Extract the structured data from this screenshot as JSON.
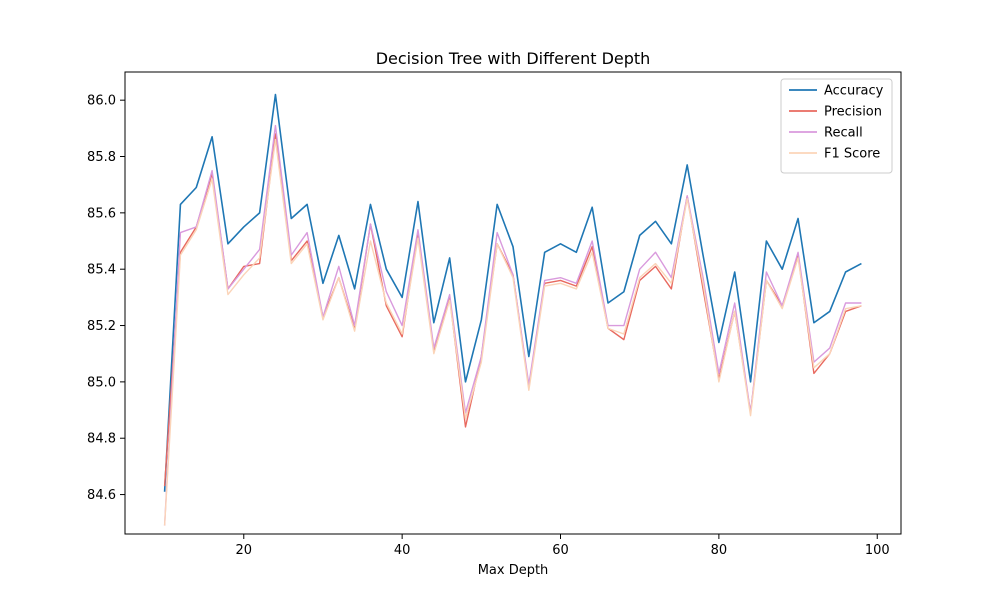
{
  "chart_data": {
    "type": "line",
    "title": "Decision Tree with Different Depth",
    "xlabel": "Max Depth",
    "ylabel": "",
    "xlim": [
      5,
      103
    ],
    "ylim": [
      84.46,
      86.1
    ],
    "xticks": [
      20,
      40,
      60,
      80,
      100
    ],
    "yticks": [
      84.6,
      84.8,
      85.0,
      85.2,
      85.4,
      85.6,
      85.8,
      86.0
    ],
    "grid": false,
    "legend_position": "top-right",
    "x": [
      10,
      12,
      14,
      16,
      18,
      20,
      22,
      24,
      26,
      28,
      30,
      32,
      34,
      36,
      38,
      40,
      42,
      44,
      46,
      48,
      50,
      52,
      54,
      56,
      58,
      60,
      62,
      64,
      66,
      68,
      70,
      72,
      74,
      76,
      78,
      80,
      82,
      84,
      86,
      88,
      90,
      92,
      94,
      96,
      98
    ],
    "series": [
      {
        "name": "Accuracy",
        "color": "#1f77b4",
        "values": [
          84.61,
          85.63,
          85.69,
          85.87,
          85.49,
          85.55,
          85.6,
          86.02,
          85.58,
          85.63,
          85.35,
          85.52,
          85.33,
          85.63,
          85.4,
          85.3,
          85.64,
          85.21,
          85.44,
          85.0,
          85.22,
          85.63,
          85.48,
          85.09,
          85.46,
          85.49,
          85.46,
          85.62,
          85.28,
          85.32,
          85.52,
          85.57,
          85.49,
          85.77,
          85.45,
          85.14,
          85.39,
          85.0,
          85.5,
          85.4,
          85.58,
          85.21,
          85.25,
          85.39,
          85.42
        ]
      },
      {
        "name": "Precision",
        "color": "#e8695f",
        "values": [
          84.63,
          85.46,
          85.55,
          85.74,
          85.33,
          85.41,
          85.42,
          85.88,
          85.43,
          85.5,
          85.23,
          85.37,
          85.19,
          85.56,
          85.27,
          85.16,
          85.53,
          85.11,
          85.3,
          84.84,
          85.09,
          85.49,
          85.38,
          84.98,
          85.35,
          85.36,
          85.34,
          85.48,
          85.19,
          85.15,
          85.36,
          85.41,
          85.33,
          85.66,
          85.33,
          85.01,
          85.25,
          84.89,
          85.36,
          85.27,
          85.45,
          85.03,
          85.1,
          85.25,
          85.27
        ]
      },
      {
        "name": "Recall",
        "color": "#d99add",
        "values": [
          84.49,
          85.53,
          85.55,
          85.75,
          85.33,
          85.4,
          85.47,
          85.91,
          85.45,
          85.53,
          85.23,
          85.41,
          85.2,
          85.56,
          85.32,
          85.2,
          85.54,
          85.12,
          85.31,
          84.89,
          85.09,
          85.53,
          85.38,
          84.99,
          85.36,
          85.37,
          85.35,
          85.5,
          85.2,
          85.2,
          85.4,
          85.46,
          85.37,
          85.66,
          85.37,
          85.03,
          85.28,
          84.89,
          85.39,
          85.27,
          85.46,
          85.07,
          85.12,
          85.28,
          85.28
        ]
      },
      {
        "name": "F1 Score",
        "color": "#fbd4b8",
        "values": [
          84.49,
          85.45,
          85.54,
          85.72,
          85.31,
          85.38,
          85.44,
          85.86,
          85.42,
          85.49,
          85.22,
          85.37,
          85.18,
          85.5,
          85.28,
          85.17,
          85.51,
          85.1,
          85.29,
          84.87,
          85.07,
          85.49,
          85.37,
          84.97,
          85.34,
          85.35,
          85.33,
          85.46,
          85.19,
          85.17,
          85.37,
          85.42,
          85.35,
          85.65,
          85.35,
          85.0,
          85.25,
          84.88,
          85.36,
          85.26,
          85.44,
          85.05,
          85.1,
          85.26,
          85.27
        ]
      }
    ]
  }
}
